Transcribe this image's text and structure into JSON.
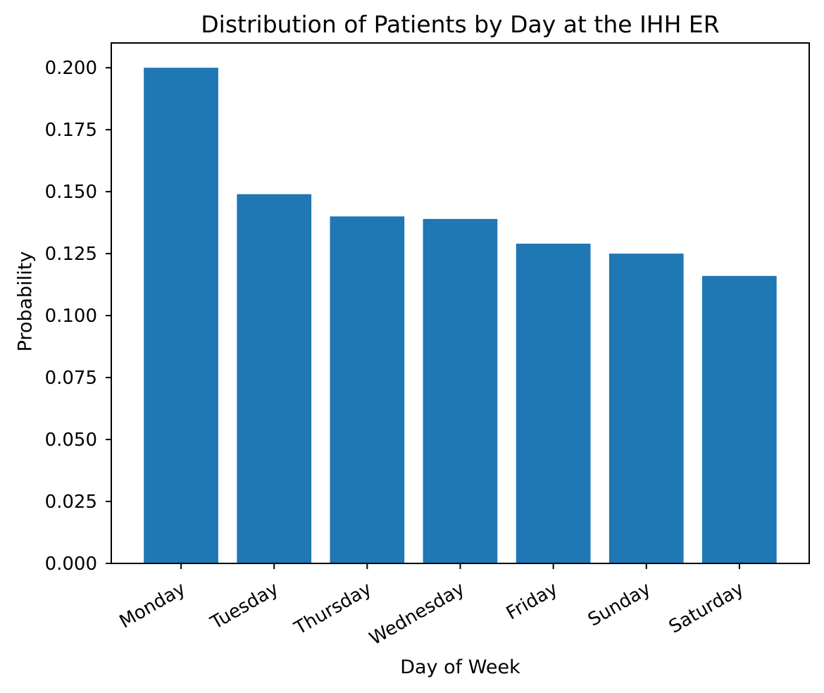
{
  "figure": {
    "background": "#ffffff",
    "text_color": "#000000"
  },
  "chart_data": {
    "type": "bar",
    "title": "Distribution of Patients by Day at the IHH ER",
    "xlabel": "Day of Week",
    "ylabel": "Probability",
    "categories": [
      "Monday",
      "Tuesday",
      "Thursday",
      "Wednesday",
      "Friday",
      "Sunday",
      "Saturday"
    ],
    "values": [
      0.2,
      0.149,
      0.14,
      0.139,
      0.129,
      0.125,
      0.116
    ],
    "bar_color": "#1f77b4",
    "ylim": [
      0,
      0.21
    ],
    "yticks": [
      0,
      0.025,
      0.05,
      0.075,
      0.1,
      0.125,
      0.15,
      0.175,
      0.2
    ],
    "ytick_decimals": 3,
    "xtick_rotation_deg": 30,
    "bar_width_fraction": 0.8,
    "grid": false,
    "legend": null
  }
}
